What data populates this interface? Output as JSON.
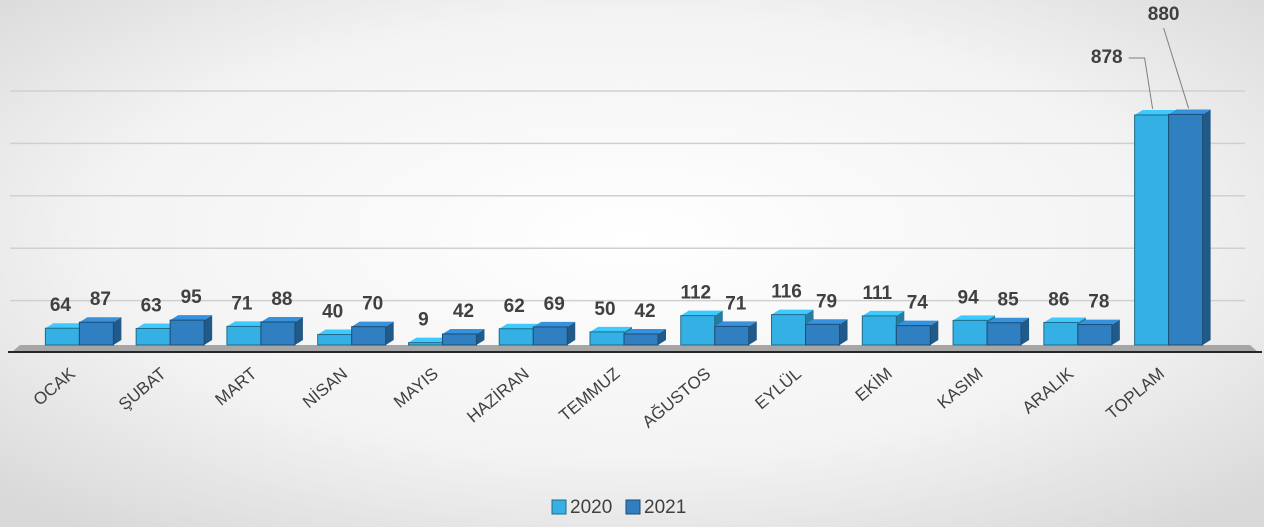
{
  "chart_data": {
    "type": "bar3d",
    "categories": [
      "OCAK",
      "ŞUBAT",
      "MART",
      "NİSAN",
      "MAYIS",
      "HAZİRAN",
      "TEMMUZ",
      "AĞUSTOS",
      "EYLÜL",
      "EKİM",
      "KASIM",
      "ARALIK",
      "TOPLAM"
    ],
    "series": [
      {
        "name": "2020",
        "color": "#35b0e4",
        "values": [
          64,
          63,
          71,
          40,
          9,
          62,
          50,
          112,
          116,
          111,
          94,
          86,
          878
        ]
      },
      {
        "name": "2021",
        "color": "#2f7fc1",
        "values": [
          87,
          95,
          88,
          70,
          42,
          69,
          42,
          71,
          79,
          74,
          85,
          78,
          880
        ]
      }
    ],
    "ylim": [
      0,
      1000
    ],
    "yticks": [
      200,
      400,
      600,
      800,
      1000
    ],
    "grid": true,
    "legend": "bottom"
  }
}
